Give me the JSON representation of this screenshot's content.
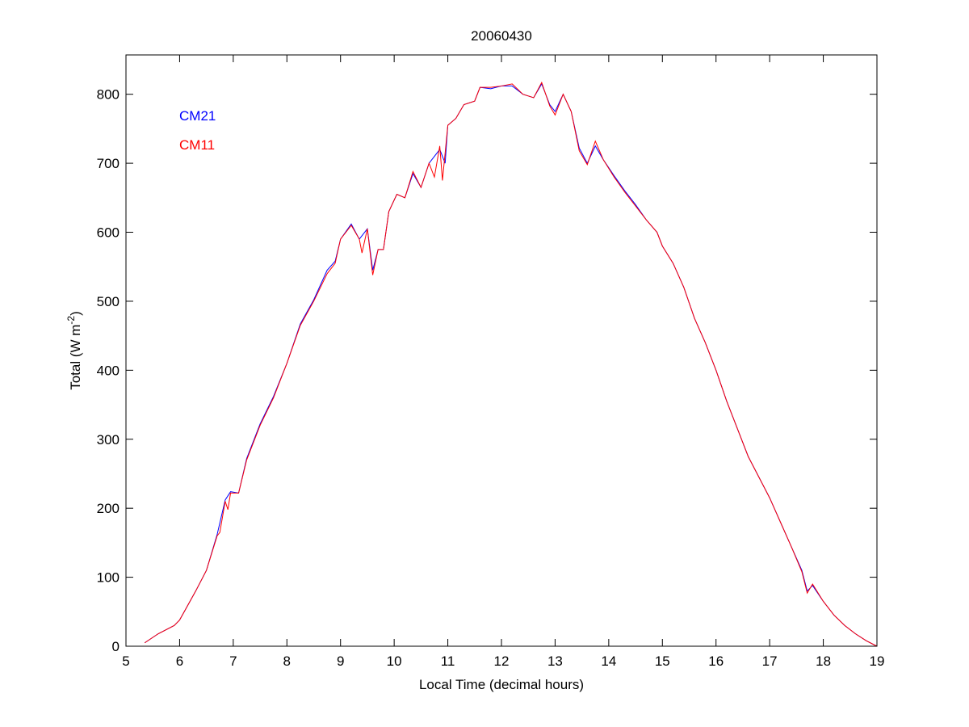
{
  "chart_data": {
    "type": "line",
    "title": "20060430",
    "xlabel": "Local Time (decimal hours)",
    "ylabel": "Total (W m",
    "ylabel_sup": "-2",
    "ylabel_end": ")",
    "xlim": [
      5,
      19
    ],
    "ylim": [
      0,
      857
    ],
    "xticks": [
      5,
      6,
      7,
      8,
      9,
      10,
      11,
      12,
      13,
      14,
      15,
      16,
      17,
      18,
      19
    ],
    "yticks": [
      0,
      100,
      200,
      300,
      400,
      500,
      600,
      700,
      800
    ],
    "grid": false,
    "legend_placement": "top-left",
    "series": [
      {
        "name": "CM21",
        "color": "#0000ff",
        "points": [
          [
            5.35,
            5
          ],
          [
            5.6,
            18
          ],
          [
            5.9,
            30
          ],
          [
            6.0,
            38
          ],
          [
            6.1,
            52
          ],
          [
            6.3,
            80
          ],
          [
            6.5,
            110
          ],
          [
            6.7,
            162
          ],
          [
            6.85,
            212
          ],
          [
            6.95,
            224
          ],
          [
            7.1,
            222
          ],
          [
            7.25,
            272
          ],
          [
            7.5,
            322
          ],
          [
            7.75,
            362
          ],
          [
            8.0,
            410
          ],
          [
            8.25,
            467
          ],
          [
            8.5,
            502
          ],
          [
            8.75,
            545
          ],
          [
            8.9,
            558
          ],
          [
            9.0,
            590
          ],
          [
            9.2,
            612
          ],
          [
            9.35,
            590
          ],
          [
            9.5,
            605
          ],
          [
            9.6,
            545
          ],
          [
            9.7,
            575
          ],
          [
            9.8,
            575
          ],
          [
            9.9,
            630
          ],
          [
            10.05,
            655
          ],
          [
            10.2,
            650
          ],
          [
            10.35,
            685
          ],
          [
            10.5,
            665
          ],
          [
            10.65,
            700
          ],
          [
            10.85,
            720
          ],
          [
            10.95,
            700
          ],
          [
            11.0,
            755
          ],
          [
            11.15,
            765
          ],
          [
            11.3,
            785
          ],
          [
            11.5,
            790
          ],
          [
            11.6,
            810
          ],
          [
            11.8,
            808
          ],
          [
            12.0,
            812
          ],
          [
            12.2,
            812
          ],
          [
            12.4,
            800
          ],
          [
            12.6,
            795
          ],
          [
            12.75,
            815
          ],
          [
            12.9,
            785
          ],
          [
            13.0,
            775
          ],
          [
            13.15,
            800
          ],
          [
            13.3,
            775
          ],
          [
            13.45,
            722
          ],
          [
            13.6,
            700
          ],
          [
            13.75,
            725
          ],
          [
            13.9,
            705
          ],
          [
            14.1,
            682
          ],
          [
            14.3,
            660
          ],
          [
            14.5,
            640
          ],
          [
            14.7,
            618
          ],
          [
            14.9,
            600
          ],
          [
            15.0,
            580
          ],
          [
            15.2,
            555
          ],
          [
            15.4,
            520
          ],
          [
            15.6,
            475
          ],
          [
            15.8,
            440
          ],
          [
            16.0,
            400
          ],
          [
            16.2,
            355
          ],
          [
            16.4,
            315
          ],
          [
            16.6,
            275
          ],
          [
            16.8,
            245
          ],
          [
            17.0,
            215
          ],
          [
            17.2,
            180
          ],
          [
            17.4,
            145
          ],
          [
            17.6,
            110
          ],
          [
            17.7,
            80
          ],
          [
            17.8,
            88
          ],
          [
            18.0,
            65
          ],
          [
            18.2,
            45
          ],
          [
            18.4,
            30
          ],
          [
            18.6,
            18
          ],
          [
            18.8,
            8
          ],
          [
            19.0,
            0
          ]
        ]
      },
      {
        "name": "CM11",
        "color": "#ff0000",
        "points": [
          [
            5.35,
            5
          ],
          [
            5.6,
            18
          ],
          [
            5.9,
            30
          ],
          [
            6.0,
            38
          ],
          [
            6.1,
            52
          ],
          [
            6.3,
            80
          ],
          [
            6.5,
            110
          ],
          [
            6.7,
            160
          ],
          [
            6.75,
            165
          ],
          [
            6.85,
            210
          ],
          [
            6.9,
            198
          ],
          [
            6.95,
            222
          ],
          [
            7.1,
            222
          ],
          [
            7.25,
            270
          ],
          [
            7.5,
            320
          ],
          [
            7.75,
            360
          ],
          [
            8.0,
            410
          ],
          [
            8.25,
            465
          ],
          [
            8.5,
            500
          ],
          [
            8.75,
            540
          ],
          [
            8.9,
            555
          ],
          [
            9.0,
            590
          ],
          [
            9.2,
            610
          ],
          [
            9.35,
            590
          ],
          [
            9.4,
            570
          ],
          [
            9.5,
            605
          ],
          [
            9.6,
            538
          ],
          [
            9.7,
            575
          ],
          [
            9.8,
            575
          ],
          [
            9.9,
            630
          ],
          [
            10.05,
            655
          ],
          [
            10.2,
            650
          ],
          [
            10.35,
            688
          ],
          [
            10.5,
            665
          ],
          [
            10.65,
            700
          ],
          [
            10.75,
            680
          ],
          [
            10.85,
            725
          ],
          [
            10.9,
            675
          ],
          [
            11.0,
            755
          ],
          [
            11.15,
            765
          ],
          [
            11.3,
            785
          ],
          [
            11.5,
            790
          ],
          [
            11.6,
            810
          ],
          [
            11.8,
            810
          ],
          [
            12.0,
            812
          ],
          [
            12.2,
            815
          ],
          [
            12.4,
            800
          ],
          [
            12.6,
            795
          ],
          [
            12.75,
            817
          ],
          [
            12.9,
            783
          ],
          [
            13.0,
            770
          ],
          [
            13.15,
            800
          ],
          [
            13.3,
            775
          ],
          [
            13.45,
            718
          ],
          [
            13.6,
            698
          ],
          [
            13.75,
            732
          ],
          [
            13.9,
            705
          ],
          [
            14.1,
            680
          ],
          [
            14.3,
            658
          ],
          [
            14.5,
            638
          ],
          [
            14.7,
            618
          ],
          [
            14.9,
            600
          ],
          [
            15.0,
            580
          ],
          [
            15.2,
            555
          ],
          [
            15.4,
            520
          ],
          [
            15.6,
            475
          ],
          [
            15.8,
            440
          ],
          [
            16.0,
            400
          ],
          [
            16.2,
            355
          ],
          [
            16.4,
            315
          ],
          [
            16.6,
            275
          ],
          [
            16.8,
            245
          ],
          [
            17.0,
            215
          ],
          [
            17.2,
            180
          ],
          [
            17.4,
            145
          ],
          [
            17.6,
            108
          ],
          [
            17.7,
            77
          ],
          [
            17.8,
            90
          ],
          [
            18.0,
            65
          ],
          [
            18.2,
            45
          ],
          [
            18.4,
            30
          ],
          [
            18.6,
            18
          ],
          [
            18.8,
            8
          ],
          [
            19.0,
            0
          ]
        ]
      }
    ]
  }
}
